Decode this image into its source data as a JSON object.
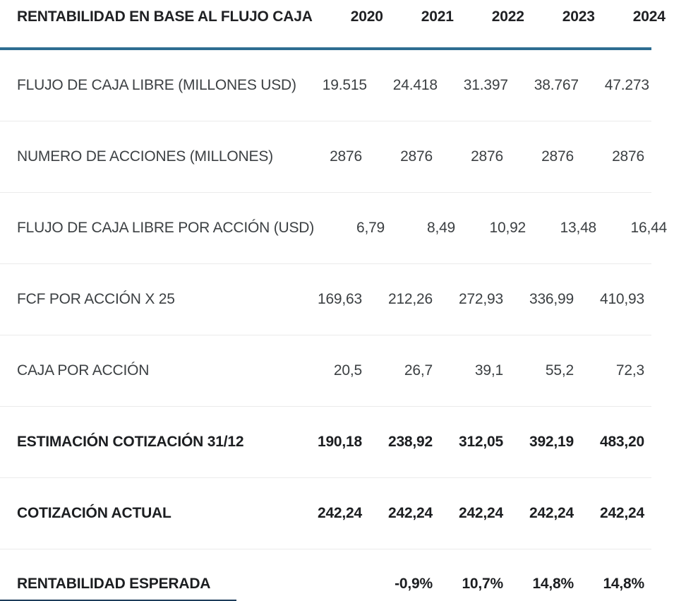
{
  "chart_data": {
    "type": "table",
    "title": "RENTABILIDAD EN BASE AL FLUJO CAJA",
    "year_columns": [
      "2020",
      "2021",
      "2022",
      "2023",
      "2024"
    ],
    "rows": [
      {
        "label": "FLUJO DE CAJA LIBRE (MILLONES USD)",
        "values": [
          "19.515",
          "24.418",
          "31.397",
          "38.767",
          "47.273"
        ],
        "bold": false
      },
      {
        "label": "NUMERO DE ACCIONES (MILLONES)",
        "values": [
          "2876",
          "2876",
          "2876",
          "2876",
          "2876"
        ],
        "bold": false
      },
      {
        "label": "FLUJO DE CAJA LIBRE POR ACCIÓN (USD)",
        "values": [
          "6,79",
          "8,49",
          "10,92",
          "13,48",
          "16,44"
        ],
        "bold": false
      },
      {
        "label": "FCF POR ACCIÓN X 25",
        "values": [
          "169,63",
          "212,26",
          "272,93",
          "336,99",
          "410,93"
        ],
        "bold": false
      },
      {
        "label": "CAJA POR ACCIÓN",
        "values": [
          "20,5",
          "26,7",
          "39,1",
          "55,2",
          "72,3"
        ],
        "bold": false
      },
      {
        "label": "ESTIMACIÓN COTIZACIÓN 31/12",
        "values": [
          "190,18",
          "238,92",
          "312,05",
          "392,19",
          "483,20"
        ],
        "bold": true
      },
      {
        "label": "COTIZACIÓN ACTUAL",
        "values": [
          "242,24",
          "242,24",
          "242,24",
          "242,24",
          "242,24"
        ],
        "bold": true
      },
      {
        "label": "RENTABILIDAD ESPERADA",
        "values": [
          "",
          "-0,9%",
          "10,7%",
          "14,8%",
          "14,8%"
        ],
        "bold": true
      }
    ]
  },
  "colors": {
    "header_rule": "#2e6d91",
    "row_divider": "#ebebeb",
    "bottom_rule": "#1d3c5a",
    "text_header": "#202124",
    "text_regular": "#3c4043",
    "text_bold": "#1c1e21"
  }
}
